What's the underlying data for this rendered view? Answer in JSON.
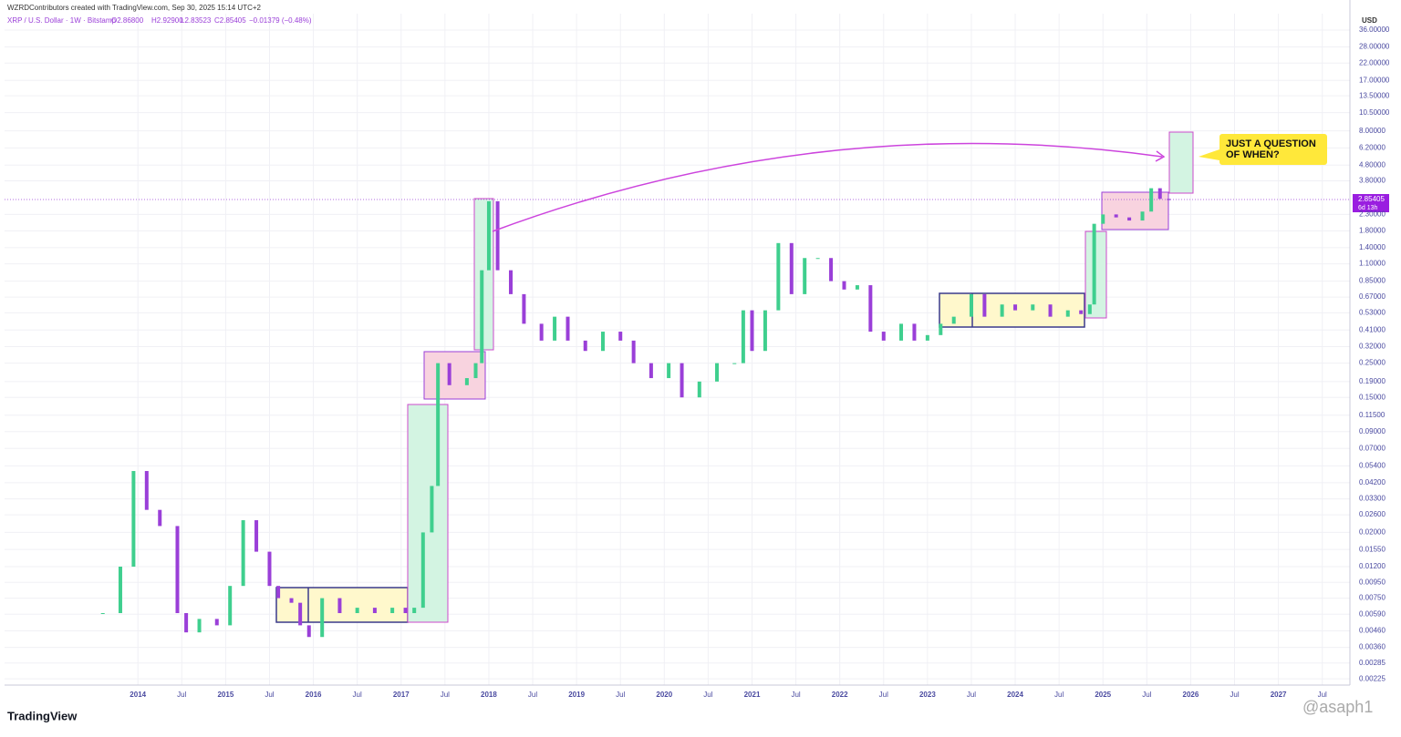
{
  "header": {
    "credit": "WZRDContributors created with TradingView.com, Sep 30, 2025 15:14 UTC+2",
    "symbol": "XRP / U.S. Dollar · 1W · Bitstamp",
    "open": "O2.86800",
    "high": "H2.92900",
    "low": "L2.83523",
    "close": "C2.85405",
    "change": "−0.01379 (−0.48%)",
    "currency": "USD",
    "price_label": "2.85405",
    "countdown": "6d 13h",
    "callout_line1": "JUST A QUESTION",
    "callout_line2": "OF WHEN?",
    "brand": "TradingView",
    "watermark": "@asaph1"
  },
  "chart_data": {
    "type": "candlestick",
    "log_scale": true,
    "grid": true,
    "up_color": "#3fcf8e",
    "down_color": "#9a3fd8",
    "x": [
      2013.6,
      2013.8,
      2013.95,
      2014.1,
      2014.25,
      2014.45,
      2014.55,
      2014.7,
      2014.9,
      2015.05,
      2015.2,
      2015.35,
      2015.5,
      2015.6,
      2015.75,
      2015.85,
      2015.95,
      2016.1,
      2016.3,
      2016.5,
      2016.7,
      2016.9,
      2017.05,
      2017.15,
      2017.25,
      2017.35,
      2017.42,
      2017.55,
      2017.75,
      2017.85,
      2017.92,
      2018.0,
      2018.1,
      2018.25,
      2018.4,
      2018.6,
      2018.75,
      2018.9,
      2019.1,
      2019.3,
      2019.5,
      2019.65,
      2019.85,
      2020.05,
      2020.2,
      2020.4,
      2020.6,
      2020.8,
      2020.9,
      2021.0,
      2021.15,
      2021.3,
      2021.45,
      2021.6,
      2021.75,
      2021.9,
      2022.05,
      2022.2,
      2022.35,
      2022.5,
      2022.7,
      2022.85,
      2023.0,
      2023.15,
      2023.3,
      2023.5,
      2023.65,
      2023.85,
      2024.0,
      2024.2,
      2024.4,
      2024.6,
      2024.75,
      2024.85,
      2024.9,
      2025.0,
      2025.15,
      2025.3,
      2025.45,
      2025.55,
      2025.65,
      2025.75
    ],
    "values": [
      0.006,
      0.012,
      0.05,
      0.028,
      0.022,
      0.006,
      0.0045,
      0.0055,
      0.005,
      0.009,
      0.024,
      0.015,
      0.009,
      0.0075,
      0.007,
      0.005,
      0.0042,
      0.0075,
      0.006,
      0.0065,
      0.006,
      0.0065,
      0.006,
      0.0065,
      0.02,
      0.04,
      0.25,
      0.18,
      0.2,
      0.25,
      1.0,
      2.8,
      1.0,
      0.7,
      0.45,
      0.35,
      0.5,
      0.35,
      0.3,
      0.4,
      0.35,
      0.25,
      0.2,
      0.25,
      0.15,
      0.19,
      0.25,
      0.25,
      0.55,
      0.3,
      0.55,
      1.5,
      0.7,
      1.2,
      1.2,
      0.85,
      0.75,
      0.8,
      0.4,
      0.35,
      0.45,
      0.35,
      0.38,
      0.45,
      0.5,
      0.7,
      0.5,
      0.6,
      0.55,
      0.6,
      0.5,
      0.55,
      0.52,
      0.6,
      2.0,
      2.3,
      2.2,
      2.1,
      2.4,
      3.4,
      2.9,
      2.85
    ],
    "xlim": [
      2012.48,
      2027.815
    ],
    "xticks": [
      2014,
      {
        "value": 2014.5,
        "label": "Jul"
      },
      2015,
      {
        "value": 2015.5,
        "label": "Jul"
      },
      2016,
      {
        "value": 2016.5,
        "label": "Jul"
      },
      2017,
      {
        "value": 2017.5,
        "label": "Jul"
      },
      2018,
      {
        "value": 2018.5,
        "label": "Jul"
      },
      2019,
      {
        "value": 2019.5,
        "label": "Jul"
      },
      2020,
      {
        "value": 2020.5,
        "label": "Jul"
      },
      2021,
      {
        "value": 2021.5,
        "label": "Jul"
      },
      2022,
      {
        "value": 2022.5,
        "label": "Jul"
      },
      2023,
      {
        "value": 2023.5,
        "label": "Jul"
      },
      2024,
      {
        "value": 2024.5,
        "label": "Jul"
      },
      2025,
      {
        "value": 2025.5,
        "label": "Jul"
      },
      2026,
      {
        "value": 2026.5,
        "label": "Jul"
      },
      2027,
      {
        "value": 2027.5,
        "label": "Jul"
      }
    ],
    "ylim": [
      0.00205,
      46
    ],
    "yticks": [
      {
        "value": 36,
        "label": "36.00000"
      },
      {
        "value": 28,
        "label": "28.00000"
      },
      {
        "value": 22,
        "label": "22.00000"
      },
      {
        "value": 17,
        "label": "17.00000"
      },
      {
        "value": 13.5,
        "label": "13.50000"
      },
      {
        "value": 10.5,
        "label": "10.50000"
      },
      {
        "value": 8,
        "label": "8.00000"
      },
      {
        "value": 6.2,
        "label": "6.20000"
      },
      {
        "value": 4.8,
        "label": "4.80000"
      },
      {
        "value": 3.8,
        "label": "3.80000"
      },
      {
        "value": 2.3,
        "label": "2.30000"
      },
      {
        "value": 1.8,
        "label": "1.80000"
      },
      {
        "value": 1.4,
        "label": "1.40000"
      },
      {
        "value": 1.1,
        "label": "1.10000"
      },
      {
        "value": 0.85,
        "label": "0.85000"
      },
      {
        "value": 0.67,
        "label": "0.67000"
      },
      {
        "value": 0.53,
        "label": "0.53000"
      },
      {
        "value": 0.41,
        "label": "0.41000"
      },
      {
        "value": 0.32,
        "label": "0.32000"
      },
      {
        "value": 0.25,
        "label": "0.25000"
      },
      {
        "value": 0.19,
        "label": "0.19000"
      },
      {
        "value": 0.15,
        "label": "0.15000"
      },
      {
        "value": 0.115,
        "label": "0.11500"
      },
      {
        "value": 0.09,
        "label": "0.09000"
      },
      {
        "value": 0.07,
        "label": "0.07000"
      },
      {
        "value": 0.054,
        "label": "0.05400"
      },
      {
        "value": 0.042,
        "label": "0.04200"
      },
      {
        "value": 0.033,
        "label": "0.03300"
      },
      {
        "value": 0.026,
        "label": "0.02600"
      },
      {
        "value": 0.02,
        "label": "0.02000"
      },
      {
        "value": 0.0155,
        "label": "0.01550"
      },
      {
        "value": 0.012,
        "label": "0.01200"
      },
      {
        "value": 0.0095,
        "label": "0.00950"
      },
      {
        "value": 0.0075,
        "label": "0.00750"
      },
      {
        "value": 0.0059,
        "label": "0.00590"
      },
      {
        "value": 0.0046,
        "label": "0.00460"
      },
      {
        "value": 0.0036,
        "label": "0.00360"
      },
      {
        "value": 0.00285,
        "label": "0.00285"
      },
      {
        "value": 0.00225,
        "label": "0.00225"
      }
    ]
  }
}
